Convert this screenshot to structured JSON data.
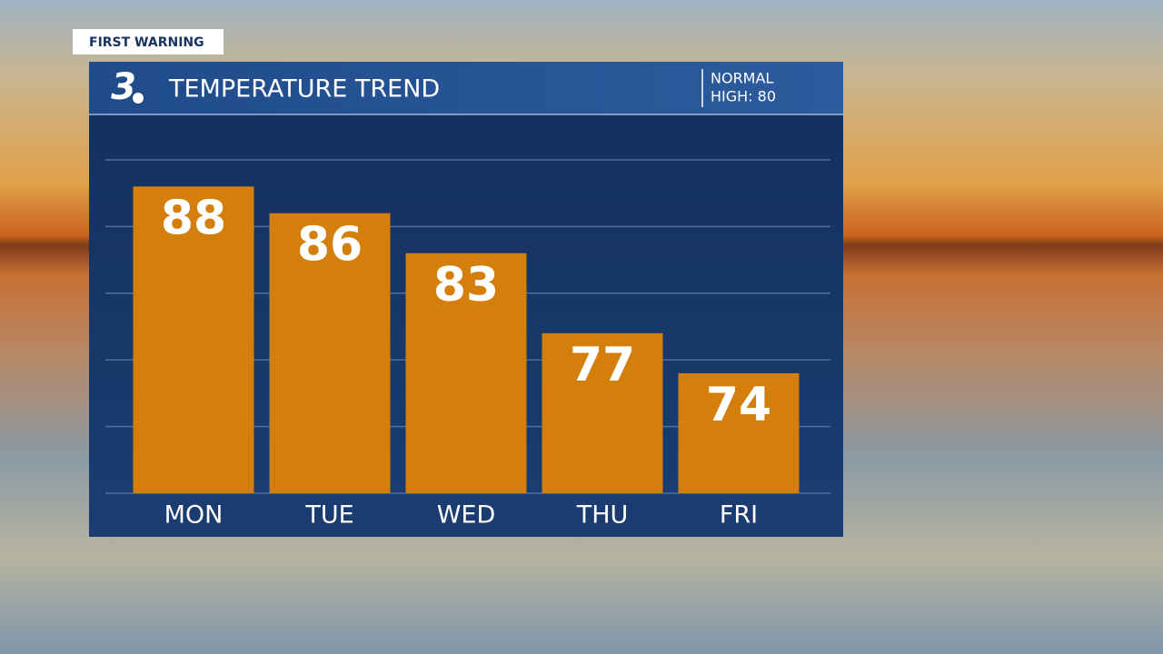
{
  "badge": "FIRST WARNING",
  "logo": "3",
  "chart_data": {
    "type": "bar",
    "title": "TEMPERATURE TREND",
    "annotations": [
      "NORMAL",
      "HIGH: 80"
    ],
    "categories": [
      "MON",
      "TUE",
      "WED",
      "THU",
      "FRI"
    ],
    "values": [
      88,
      86,
      83,
      77,
      74
    ],
    "color": "#d47f0c",
    "ylim": [
      65,
      90
    ],
    "yticks": [
      65,
      70,
      75,
      80,
      85,
      90
    ],
    "grid": true
  }
}
